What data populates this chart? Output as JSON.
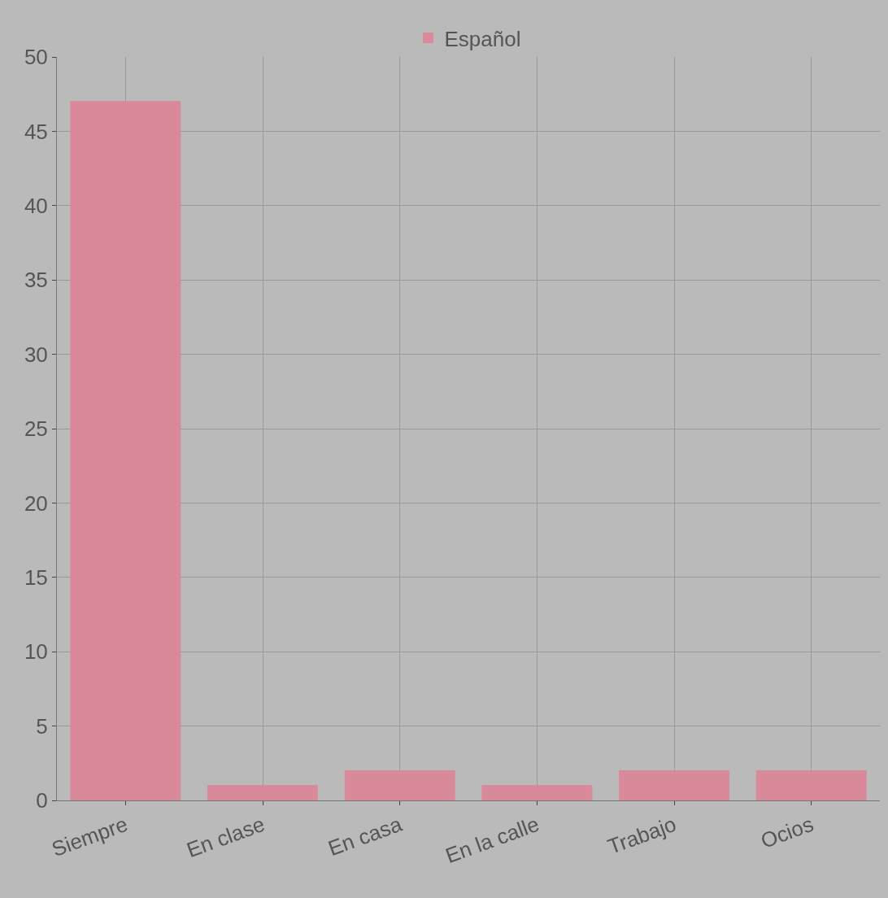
{
  "chart_data": {
    "type": "bar",
    "categories": [
      "Siempre",
      "En clase",
      "En casa",
      "En la calle",
      "Trabajo",
      "Ocios"
    ],
    "series": [
      {
        "name": "Español",
        "color": "#d88a9a",
        "values": [
          47,
          1,
          2,
          1,
          2,
          2
        ]
      }
    ],
    "ylim": [
      0,
      50
    ],
    "yticks": [
      0,
      5,
      10,
      15,
      20,
      25,
      30,
      35,
      40,
      45,
      50
    ],
    "grid": true,
    "legend": "top"
  }
}
